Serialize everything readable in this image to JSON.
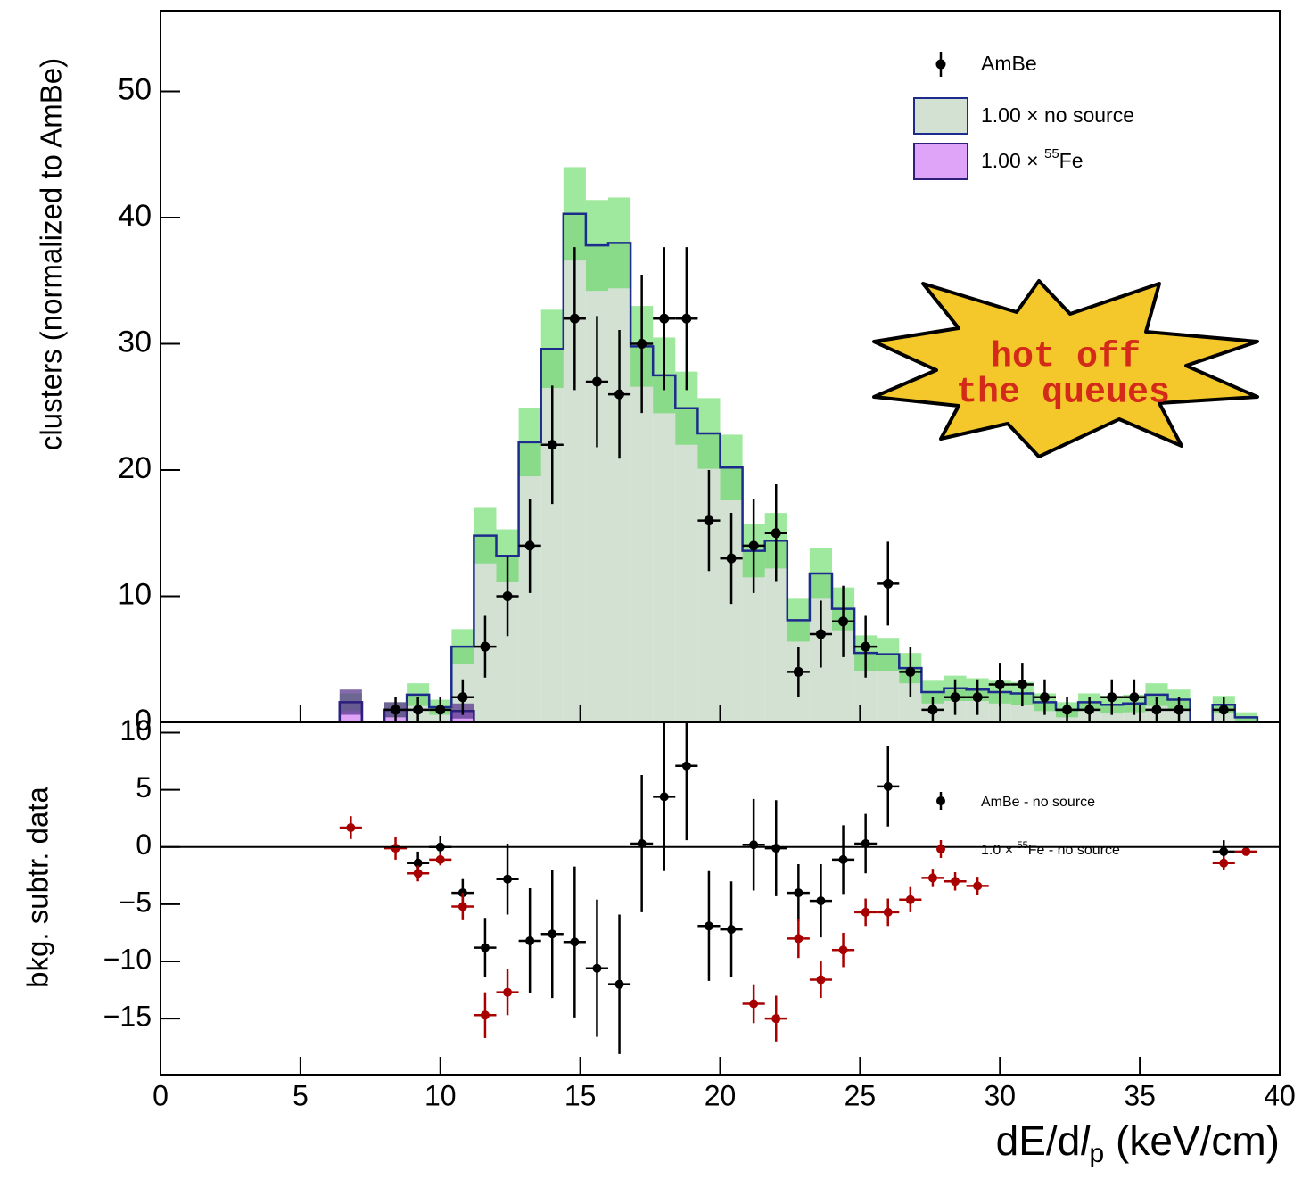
{
  "chart_data": [
    {
      "type": "histogram",
      "ylabel": "clusters (normalized to AmBe)",
      "annotation": [
        "hot off",
        "the queues"
      ],
      "xlim": [
        0,
        40
      ],
      "xticks": [
        0,
        5,
        10,
        15,
        20,
        25,
        30,
        35,
        40
      ],
      "ylim": [
        0,
        56.4
      ],
      "yticks": [
        0,
        10,
        20,
        30,
        40,
        50
      ],
      "bins": [
        0,
        0.8,
        1.6,
        2.4,
        3.2,
        4,
        4.8,
        5.6,
        6.4,
        7.2,
        8,
        8.8,
        9.6,
        10.4,
        11.2,
        12,
        12.8,
        13.6,
        14.4,
        15.2,
        16,
        16.8,
        17.6,
        18.4,
        19.2,
        20,
        20.8,
        21.6,
        22.4,
        23.2,
        24,
        24.8,
        25.6,
        26.4,
        27.2,
        28,
        28.8,
        29.6,
        30.4,
        31.2,
        32,
        32.8,
        33.6,
        34.4,
        35.2,
        36,
        36.8,
        37.6,
        38.4,
        39.2,
        40
      ],
      "histograms": [
        {
          "name": "1.00 × no source",
          "color": "#d3e1d3",
          "line_color": "#1c2b8c",
          "band_color": "#3fd33f",
          "values": [
            0,
            0,
            0,
            0,
            0,
            0,
            0,
            0,
            1.6,
            0,
            1.0,
            2.2,
            1.2,
            6.0,
            14.8,
            13.2,
            22.2,
            29.6,
            40.3,
            37.8,
            38.0,
            29.8,
            27.5,
            24.9,
            22.9,
            20.2,
            13.6,
            14.4,
            8.1,
            11.8,
            9.0,
            5.5,
            5.4,
            4.3,
            2.4,
            2.7,
            2.6,
            2.4,
            2.3,
            1.6,
            1.0,
            1.6,
            1.4,
            1.5,
            2.2,
            1.8,
            0,
            1.4,
            0.4,
            0
          ],
          "errors": [
            0,
            0,
            0,
            0,
            0,
            0,
            0,
            0,
            0.7,
            0,
            0.6,
            0.9,
            0.6,
            1.4,
            2.2,
            2.1,
            2.7,
            3.1,
            3.7,
            3.6,
            3.6,
            3.2,
            3.0,
            2.9,
            2.8,
            2.6,
            2.1,
            2.2,
            1.7,
            2.0,
            1.7,
            1.4,
            1.3,
            1.2,
            0.9,
            1.0,
            0.9,
            0.9,
            0.9,
            0.7,
            0.6,
            0.7,
            0.7,
            0.7,
            0.9,
            0.8,
            0,
            0.7,
            0.4,
            0
          ]
        },
        {
          "name_parts": [
            "1.00 × ",
            "55",
            "Fe"
          ],
          "color": "#dfa3f7",
          "line_color": "#2e1f7a",
          "band_color": "#5b3a8f",
          "values": [
            0,
            0,
            0,
            0,
            0,
            0,
            0,
            0,
            1.6,
            0,
            1.0,
            0,
            0,
            0.9,
            0,
            0,
            0,
            0,
            0,
            0,
            0,
            0,
            0,
            0,
            0,
            0,
            0,
            0,
            0,
            0,
            0,
            0,
            0,
            0,
            0,
            0,
            0,
            0,
            0,
            0,
            0,
            0,
            0,
            0,
            0,
            0,
            0,
            0,
            0,
            0
          ],
          "errors": [
            0,
            0,
            0,
            0,
            0,
            0,
            0,
            0,
            1.0,
            0,
            0.6,
            0,
            0,
            0.6,
            0,
            0,
            0,
            0,
            0,
            0,
            0,
            0,
            0,
            0,
            0,
            0,
            0,
            0,
            0,
            0,
            0,
            0,
            0,
            0,
            0,
            0,
            0,
            0,
            0,
            0,
            0,
            0,
            0,
            0,
            0,
            0,
            0,
            0,
            0,
            0
          ]
        }
      ],
      "points": {
        "name": "AmBe",
        "color": "#000000",
        "x": [
          8.4,
          9.2,
          10.0,
          10.8,
          11.6,
          12.4,
          13.2,
          14.0,
          14.8,
          15.6,
          16.4,
          17.2,
          18.0,
          18.8,
          19.6,
          20.4,
          21.2,
          22.0,
          22.8,
          23.6,
          24.4,
          25.2,
          26.0,
          26.8,
          27.6,
          28.4,
          29.2,
          30.0,
          30.8,
          31.6,
          32.4,
          33.2,
          34.0,
          34.8,
          35.6,
          36.4,
          38.0
        ],
        "values": [
          1,
          1,
          1,
          2,
          6,
          10,
          14,
          22,
          32,
          27,
          26,
          30,
          32,
          32,
          16,
          13,
          14,
          15,
          4,
          7,
          8,
          6,
          11,
          4,
          1,
          2,
          2,
          3,
          3,
          2,
          1,
          1,
          2,
          2,
          1,
          1,
          1
        ],
        "errors": [
          1,
          1,
          1,
          1.41,
          2.45,
          3.16,
          3.74,
          4.69,
          5.66,
          5.2,
          5.1,
          5.48,
          5.66,
          5.66,
          4,
          3.61,
          3.74,
          3.87,
          2,
          2.65,
          2.83,
          2.45,
          3.32,
          2,
          1,
          1.41,
          1.41,
          1.73,
          1.73,
          1.41,
          1,
          1,
          1.41,
          1.41,
          1,
          1,
          1
        ]
      }
    },
    {
      "type": "scatter",
      "ylabel": "bkg. subtr. data",
      "xlabel_parts": [
        "dE/d",
        "l",
        "p",
        " (keV/cm)"
      ],
      "xlim": [
        0,
        40
      ],
      "xticks": [
        0,
        5,
        10,
        15,
        20,
        25,
        30,
        35,
        40
      ],
      "ylim": [
        -19.9,
        10.9
      ],
      "yticks": [
        {
          "value": -15,
          "label": "−15"
        },
        {
          "value": -10,
          "label": "−10"
        },
        {
          "value": -5,
          "label": "−5"
        },
        0,
        5,
        10
      ],
      "series": [
        {
          "name": "AmBe - no source",
          "color": "#000000",
          "x": [
            9.2,
            10.0,
            10.8,
            11.6,
            12.4,
            13.2,
            14.0,
            14.8,
            15.6,
            16.4,
            17.2,
            18.0,
            18.8,
            19.6,
            20.4,
            21.2,
            22.0,
            22.8,
            23.6,
            24.4,
            25.2,
            26.0,
            38.0
          ],
          "values": [
            -1.4,
            0,
            -4,
            -8.8,
            -2.8,
            -8.2,
            -7.6,
            -8.3,
            -10.6,
            -12,
            0.3,
            4.4,
            7.1,
            -6.9,
            -7.2,
            0.2,
            -0.1,
            -4,
            -4.7,
            -1.1,
            0.3,
            5.3,
            -0.4
          ],
          "errors": [
            1,
            1,
            1.2,
            2.6,
            3.1,
            4.6,
            5.6,
            6.6,
            6,
            6.1,
            6,
            6.5,
            6.5,
            4.8,
            4.2,
            4,
            4.2,
            2.5,
            3.2,
            3,
            2.6,
            3.5,
            1
          ]
        },
        {
          "name_parts": [
            "1.0 × ",
            "55",
            "Fe - no source"
          ],
          "color": "#a80000",
          "x": [
            6.8,
            8.4,
            9.2,
            10.0,
            10.8,
            11.6,
            12.4,
            21.2,
            22.0,
            22.8,
            23.6,
            24.4,
            25.2,
            26.0,
            26.8,
            27.6,
            28.4,
            29.2,
            38.0,
            38.8
          ],
          "values": [
            1.7,
            -0.1,
            -2.3,
            -1.1,
            -5.2,
            -14.7,
            -12.7,
            -13.7,
            -15,
            -8,
            -11.6,
            -9,
            -5.7,
            -5.7,
            -4.6,
            -2.7,
            -3,
            -3.4,
            -1.4,
            -0.4
          ],
          "errors": [
            1,
            1,
            0.7,
            0.5,
            1.2,
            2,
            2,
            1.7,
            2,
            1.7,
            1.6,
            1.5,
            1.2,
            1.2,
            1.1,
            0.8,
            0.8,
            0.8,
            0.6,
            0.3
          ]
        }
      ]
    }
  ]
}
